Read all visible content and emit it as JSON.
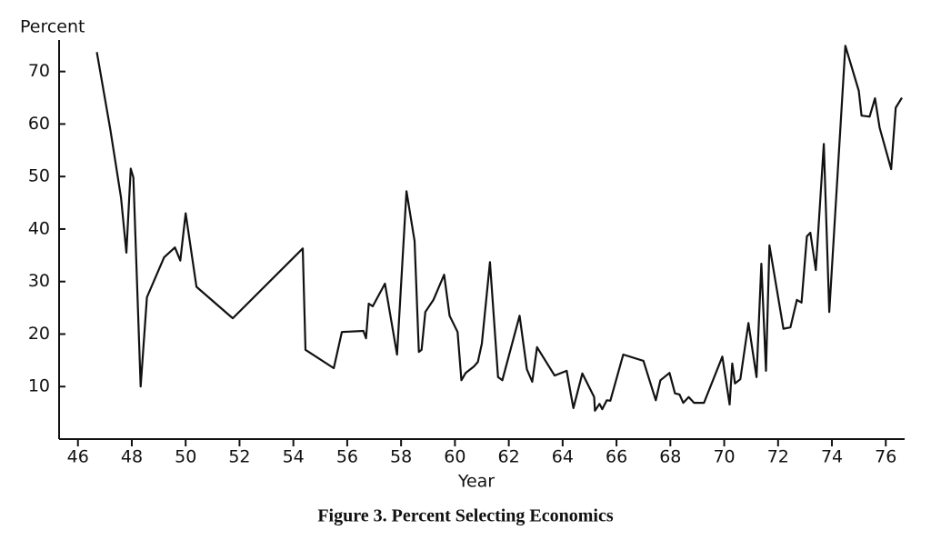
{
  "chart_data": {
    "type": "line",
    "caption": "Figure 3. Percent Selecting Economics",
    "y_label": "Percent",
    "x_label": "Year",
    "color": "#111111",
    "xlim": [
      45.3,
      76.7
    ],
    "xticks": [
      46,
      48,
      50,
      52,
      54,
      56,
      58,
      60,
      62,
      64,
      66,
      68,
      70,
      72,
      74,
      76
    ],
    "ylim": [
      0,
      76
    ],
    "yticks": [
      10,
      20,
      30,
      40,
      50,
      60,
      70
    ],
    "series": [
      {
        "name": "Percent Selecting Economics",
        "x": [
          46.7,
          47.2,
          47.6,
          47.8,
          47.96,
          48.06,
          48.33,
          48.56,
          49.2,
          49.6,
          49.8,
          50.0,
          50.4,
          51.75,
          54.35,
          54.45,
          55.5,
          55.8,
          56.6,
          56.7,
          56.8,
          56.95,
          57.4,
          57.85,
          58.2,
          58.5,
          58.66,
          58.76,
          58.9,
          59.2,
          59.6,
          59.8,
          60.1,
          60.24,
          60.4,
          60.7,
          60.85,
          61.0,
          61.3,
          61.6,
          61.76,
          62.4,
          62.67,
          62.87,
          63.05,
          63.7,
          64.15,
          64.3,
          64.4,
          64.73,
          65.17,
          65.2,
          65.37,
          65.47,
          65.64,
          65.77,
          66.25,
          67.0,
          67.46,
          67.63,
          67.97,
          68.17,
          68.34,
          68.48,
          68.68,
          68.88,
          69.25,
          69.93,
          70.2,
          70.3,
          70.4,
          70.6,
          70.9,
          71.2,
          71.38,
          71.55,
          71.68,
          72.2,
          72.46,
          72.7,
          72.87,
          73.07,
          73.2,
          73.4,
          73.7,
          73.9,
          74.5,
          75.0,
          75.1,
          75.4,
          75.6,
          75.77,
          76.2,
          76.37,
          76.6
        ],
        "values": [
          73.7,
          59,
          46,
          35.5,
          51.5,
          49.8,
          10,
          27,
          34.6,
          36.5,
          34,
          43,
          29,
          23,
          36.3,
          17,
          13.5,
          20.4,
          20.6,
          19.2,
          25.8,
          25.3,
          29.6,
          16.1,
          47.2,
          37.7,
          16.6,
          17,
          24.2,
          26.5,
          31.3,
          23.5,
          20.4,
          11.2,
          12.6,
          13.8,
          14.7,
          18.2,
          33.7,
          11.8,
          11.2,
          23.5,
          13.3,
          10.9,
          17.5,
          12.1,
          13,
          8.7,
          5.9,
          12.5,
          8,
          5.4,
          6.7,
          5.7,
          7.4,
          7.3,
          16.1,
          14.9,
          7.4,
          11.2,
          12.6,
          8.7,
          8.5,
          6.9,
          8,
          6.9,
          6.9,
          15.7,
          6.6,
          14.4,
          10.6,
          11.4,
          22.1,
          11.8,
          33.4,
          13,
          36.9,
          21,
          21.3,
          26.5,
          26,
          38.6,
          39.3,
          32.2,
          56.2,
          24.2,
          74.9,
          66.3,
          61.6,
          61.4,
          64.9,
          59.3,
          51.4,
          63.1,
          65
        ]
      }
    ]
  }
}
